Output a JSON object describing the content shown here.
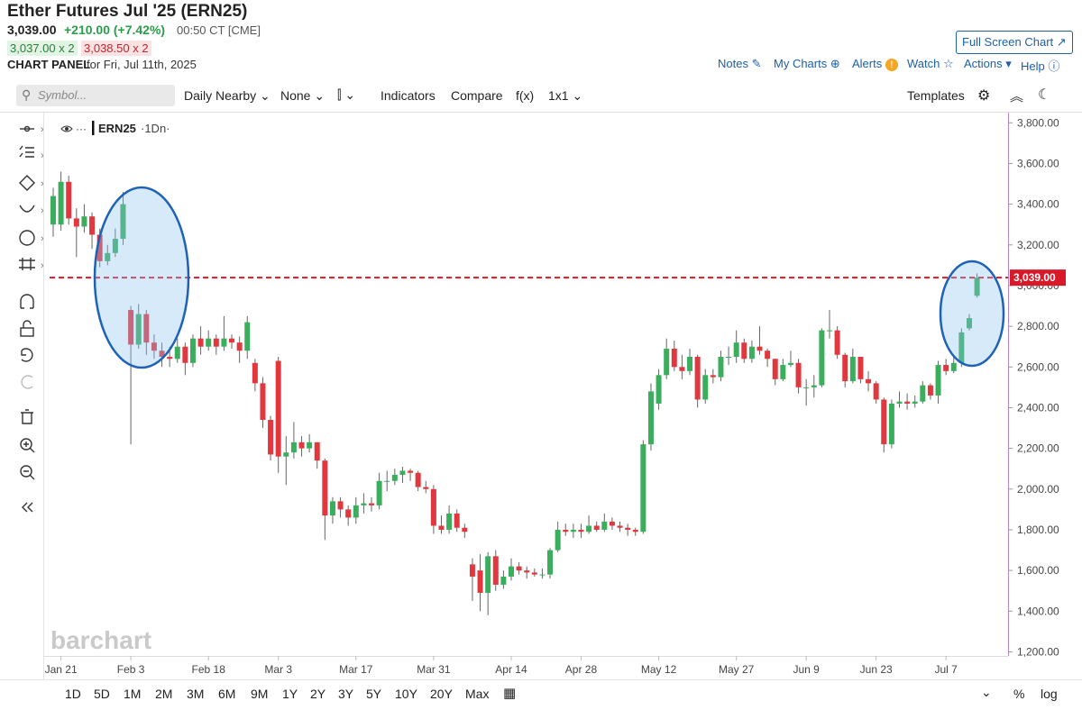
{
  "header": {
    "title": "Ether Futures Jul '25 (ERN25)",
    "price": "3,039.00",
    "change": "+210.00 (+7.42%)",
    "time": "00:50 CT [CME]",
    "bid": "3,037.00 x 2",
    "ask": "3,038.50 x 2",
    "panel": "CHART PANEL",
    "date": "for Fri, Jul 11th, 2025"
  },
  "links": [
    "Full Screen Chart",
    "Notes",
    "My Charts",
    "Alerts",
    "Watch",
    "Actions",
    "Help"
  ],
  "toolbar": {
    "search": "Symbol...",
    "items": [
      "Daily Nearby",
      "None",
      "Indicators",
      "Compare",
      "f(x)",
      "1x1"
    ],
    "templates": "Templates"
  },
  "legend": {
    "symbol": "ERN25",
    "interval": "·1Dn·"
  },
  "watermark": "barchart",
  "ranges": [
    "1D",
    "5D",
    "1M",
    "2M",
    "3M",
    "6M",
    "9M",
    "1Y",
    "2Y",
    "3Y",
    "5Y",
    "10Y",
    "20Y",
    "Max"
  ],
  "scale_options": [
    "%",
    "log"
  ],
  "chart_data": {
    "type": "candlestick",
    "up_color": "#3aae5c",
    "down_color": "#e0383e",
    "categories": [
      null,
      "Jan 21",
      null,
      null,
      null,
      null,
      null,
      null,
      null,
      null,
      "Feb 3",
      null,
      null,
      null,
      null,
      null,
      null,
      null,
      null,
      null,
      "Feb 18",
      null,
      null,
      null,
      null,
      null,
      null,
      null,
      null,
      "Mar 3",
      null,
      null,
      null,
      null,
      null,
      null,
      null,
      null,
      null,
      "Mar 17",
      null,
      null,
      null,
      null,
      null,
      null,
      null,
      null,
      null,
      "Mar 31",
      null,
      null,
      null,
      null,
      null,
      null,
      null,
      null,
      null,
      "Apr 14",
      null,
      null,
      null,
      null,
      null,
      null,
      null,
      null,
      "Apr 28",
      null,
      null,
      null,
      null,
      null,
      null,
      null,
      null,
      null,
      "May 12",
      null,
      null,
      null,
      null,
      null,
      null,
      null,
      null,
      null,
      "May 27",
      null,
      null,
      null,
      null,
      null,
      null,
      null,
      null,
      "Jun 9",
      null,
      null,
      null,
      null,
      null,
      null,
      null,
      null,
      "Jun 23",
      null,
      null,
      null,
      null,
      null,
      null,
      null,
      null,
      "Jul 7",
      null,
      null,
      null,
      null
    ],
    "open": [
      3300,
      3300,
      3510,
      3330,
      3290,
      3340,
      3250,
      3120,
      3160,
      3230,
      2880,
      2710,
      2860,
      2720,
      2680,
      2650,
      2640,
      2700,
      2620,
      2740,
      2700,
      2740,
      2700,
      2740,
      2720,
      2680,
      2620,
      2520,
      2340,
      2630,
      2160,
      2180,
      2230,
      2200,
      2230,
      2140,
      1870,
      1940,
      1900,
      1860,
      1920,
      1930,
      1920,
      2040,
      2040,
      2070,
      2090,
      2080,
      2010,
      2000,
      1820,
      1800,
      1880,
      1810,
      1630,
      1600,
      1490,
      1670,
      1530,
      1570,
      1620,
      1600,
      1590,
      1580,
      1580,
      1700,
      1800,
      1790,
      1800,
      1790,
      1820,
      1800,
      1840,
      1820,
      1810,
      1800,
      1790,
      2220,
      2420,
      2560,
      2690,
      2600,
      2580,
      2650,
      2440,
      2560,
      2550,
      2650,
      2650,
      2720,
      2640,
      2700,
      2680,
      2640,
      2540,
      2610,
      2620,
      2500,
      2500,
      2510,
      2780,
      2780,
      2660,
      2530,
      2650,
      2540,
      2520,
      2440,
      2220,
      2420,
      2430,
      2420,
      2430,
      2510,
      2460,
      2610,
      2580,
      2620,
      2790,
      2950
    ],
    "high": [
      3480,
      3560,
      3540,
      3380,
      3400,
      3360,
      3280,
      3200,
      3280,
      3460,
      2900,
      2910,
      2880,
      2760,
      2720,
      2700,
      2740,
      2720,
      2760,
      2800,
      2780,
      2760,
      2850,
      2760,
      2750,
      2850,
      2640,
      2550,
      2360,
      2650,
      2260,
      2330,
      2260,
      2270,
      2230,
      2150,
      1960,
      1960,
      1920,
      1960,
      1980,
      1960,
      2080,
      2090,
      2100,
      2110,
      2100,
      2090,
      2040,
      2020,
      1870,
      1920,
      1900,
      1830,
      1660,
      1680,
      1690,
      1700,
      1600,
      1660,
      1640,
      1620,
      1610,
      1610,
      1710,
      1840,
      1830,
      1830,
      1830,
      1870,
      1840,
      1880,
      1860,
      1840,
      1830,
      1810,
      2240,
      2520,
      2590,
      2740,
      2730,
      2660,
      2690,
      2660,
      2590,
      2590,
      2680,
      2700,
      2780,
      2740,
      2730,
      2800,
      2690,
      2640,
      2640,
      2680,
      2640,
      2540,
      2560,
      2790,
      2880,
      2800,
      2670,
      2690,
      2650,
      2580,
      2530,
      2450,
      2440,
      2480,
      2470,
      2460,
      2530,
      2520,
      2630,
      2640,
      2650,
      2790,
      2860,
      3060
    ],
    "low": [
      3240,
      3270,
      3300,
      3140,
      3260,
      3180,
      3090,
      3100,
      3140,
      3200,
      2220,
      2690,
      2660,
      2640,
      2600,
      2600,
      2620,
      2560,
      2600,
      2660,
      2680,
      2660,
      2680,
      2690,
      2620,
      2640,
      2480,
      2300,
      2140,
      2080,
      2020,
      2150,
      2160,
      2180,
      2100,
      1750,
      1830,
      1860,
      1820,
      1830,
      1880,
      1890,
      1900,
      1990,
      2020,
      2030,
      2040,
      1990,
      1980,
      1780,
      1780,
      1780,
      1790,
      1760,
      1450,
      1400,
      1380,
      1500,
      1510,
      1550,
      1580,
      1560,
      1570,
      1560,
      1560,
      1690,
      1770,
      1760,
      1760,
      1780,
      1790,
      1790,
      1800,
      1790,
      1770,
      1770,
      1780,
      2190,
      2390,
      2540,
      2580,
      2540,
      2560,
      2400,
      2420,
      2520,
      2530,
      2610,
      2620,
      2620,
      2620,
      2660,
      2600,
      2510,
      2530,
      2600,
      2470,
      2410,
      2450,
      2500,
      2740,
      2640,
      2500,
      2520,
      2520,
      2480,
      2420,
      2180,
      2200,
      2400,
      2390,
      2400,
      2420,
      2440,
      2420,
      2560,
      2570,
      2600,
      2780,
      2940
    ],
    "close": [
      3440,
      3510,
      3330,
      3290,
      3340,
      3250,
      3120,
      3160,
      3230,
      3400,
      2710,
      2860,
      2720,
      2680,
      2650,
      2640,
      2700,
      2620,
      2740,
      2700,
      2740,
      2700,
      2740,
      2720,
      2680,
      2820,
      2520,
      2340,
      2170,
      2160,
      2180,
      2230,
      2200,
      2230,
      2140,
      1870,
      1940,
      1900,
      1860,
      1920,
      1930,
      1920,
      2040,
      2040,
      2070,
      2090,
      2080,
      2010,
      2000,
      1820,
      1800,
      1880,
      1810,
      1790,
      1570,
      1490,
      1670,
      1530,
      1570,
      1620,
      1600,
      1590,
      1580,
      1580,
      1700,
      1800,
      1790,
      1800,
      1790,
      1820,
      1800,
      1840,
      1820,
      1810,
      1800,
      1790,
      2220,
      2480,
      2560,
      2690,
      2600,
      2580,
      2650,
      2440,
      2560,
      2550,
      2650,
      2650,
      2720,
      2640,
      2700,
      2680,
      2640,
      2540,
      2610,
      2620,
      2500,
      2500,
      2510,
      2780,
      2780,
      2660,
      2530,
      2650,
      2540,
      2520,
      2440,
      2220,
      2420,
      2430,
      2420,
      2430,
      2510,
      2460,
      2610,
      2580,
      2620,
      2770,
      2840,
      3039
    ],
    "ylim": [
      1180,
      3850
    ],
    "yticks": [
      {
        "value": 1200,
        "label": "1,200.00"
      },
      {
        "value": 1400,
        "label": "1,400.00"
      },
      {
        "value": 1600,
        "label": "1,600.00"
      },
      {
        "value": 1800,
        "label": "1,800.00"
      },
      {
        "value": 2000,
        "label": "2,000.00"
      },
      {
        "value": 2200,
        "label": "2,200.00"
      },
      {
        "value": 2400,
        "label": "2,400.00"
      },
      {
        "value": 2600,
        "label": "2,600.00"
      },
      {
        "value": 2800,
        "label": "2,800.00"
      },
      {
        "value": 3000,
        "label": "3,000.00"
      },
      {
        "value": 3200,
        "label": "3,200.00"
      },
      {
        "value": 3400,
        "label": "3,400.00"
      },
      {
        "value": 3600,
        "label": "3,600.00"
      },
      {
        "value": 3800,
        "label": "3,800.00"
      }
    ],
    "last_price": {
      "value": 3039,
      "label": "3,039.00",
      "color": "#d9192a"
    },
    "grid": false
  }
}
